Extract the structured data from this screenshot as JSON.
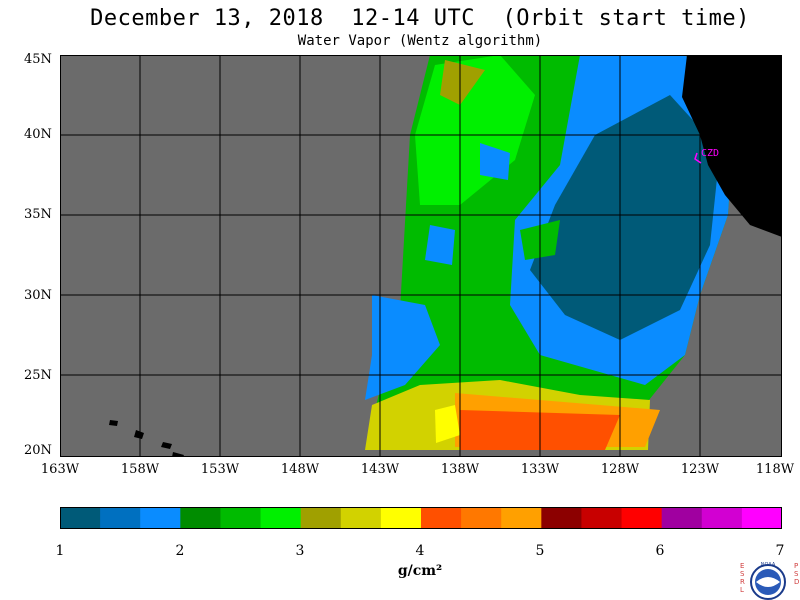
{
  "header": {
    "title": "December 13, 2018  12-14 UTC  (Orbit start time)",
    "subtitle": "Water Vapor (Wentz algorithm)"
  },
  "map": {
    "lat_labels": [
      "45N",
      "40N",
      "35N",
      "30N",
      "25N",
      "20N"
    ],
    "lon_labels": [
      "163W",
      "158W",
      "153W",
      "148W",
      "143W",
      "138W",
      "133W",
      "128W",
      "123W",
      "118W"
    ],
    "station_label": "CZD",
    "colors": {
      "no_data": "#6b6b6b",
      "land": "#000000",
      "grid": "#000000",
      "station": "#ff00ff"
    }
  },
  "colorbar": {
    "tick_labels": [
      "1",
      "2",
      "3",
      "4",
      "5",
      "6",
      "7"
    ],
    "units": "g/cm²",
    "colors": [
      "#005a78",
      "#0070c0",
      "#0a8cff",
      "#008c00",
      "#00bb00",
      "#00f000",
      "#a0a000",
      "#d2d200",
      "#ffff00",
      "#ff5000",
      "#ff7800",
      "#ffa000",
      "#8c0000",
      "#c80000",
      "#ff0000",
      "#a000a0",
      "#d200d2",
      "#ff00ff"
    ]
  },
  "logo": {
    "left_text": "ESRL",
    "right_text": "PSD",
    "center_text": "NOAA"
  }
}
